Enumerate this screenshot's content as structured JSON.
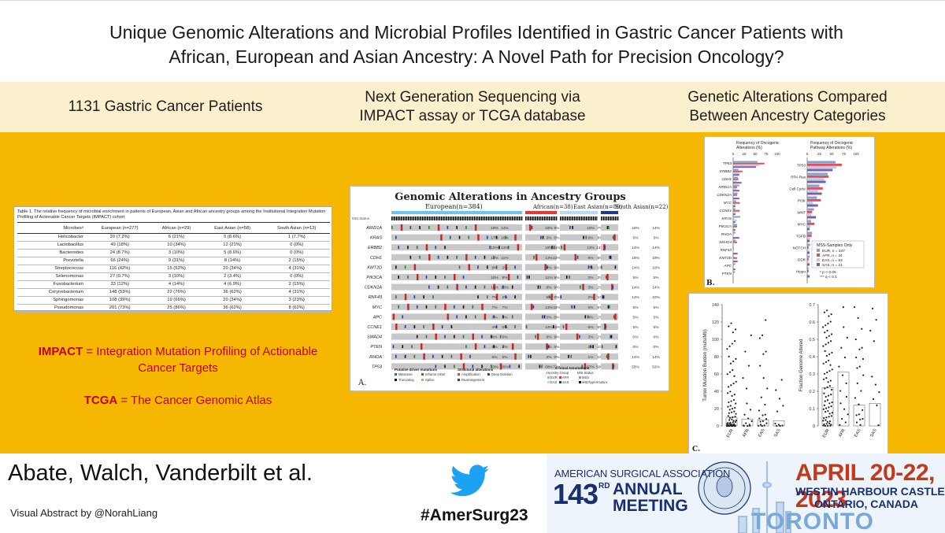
{
  "title": {
    "line1": "Unique Genomic Alterations and Microbial Profiles Identified in Gastric Cancer Patients with",
    "line2": "African, European and Asian Ancestry: A Novel Path for Precision Oncology?"
  },
  "header_strip": {
    "col1": "1131 Gastric Cancer Patients",
    "col2_line1": "Next Generation Sequencing via",
    "col2_line2": "IMPACT assay or TCGA database",
    "col3_line1": "Genetic Alterations Compared",
    "col3_line2": "Between Ancestry Categories"
  },
  "microbe_table": {
    "caption": "Table 1. The relative frequency of microbial enrichment in patients of European, Asian and African ancestry groups among the Institutional Integration Mutation Profiling of Actionable Cancer Targets (IMPACT) cohort",
    "headers": [
      "Microbesᵃ",
      "European (n=277)",
      "African (n=29)",
      "East Asian (n=58)",
      "South Asian (n=13)"
    ],
    "rows": [
      [
        "Helicobacter",
        "20 (7.2%)",
        "6 (21%)",
        "5 (8.6%)",
        "1 (7.7%)"
      ],
      [
        "Lactobacillus",
        "49 (18%)",
        "10 (34%)",
        "12 (21%)",
        "0 (0%)"
      ],
      [
        "Bacteroides",
        "24 (8.7%)",
        "3 (10%)",
        "5 (8.6%)",
        "0 (0%)"
      ],
      [
        "Prevotella",
        "66 (24%)",
        "9 (31%)",
        "8 (14%)",
        "2 (15%)"
      ],
      [
        "Streptococcus",
        "116 (42%)",
        "15 (52%)",
        "20 (34%)",
        "4 (31%)"
      ],
      [
        "Selenomonas",
        "27 (9.7%)",
        "3 (10%)",
        "2 (3.4%)",
        "0 (0%)"
      ],
      [
        "Fusobacterium",
        "33 (12%)",
        "4 (14%)",
        "4 (6.9%)",
        "2 (15%)"
      ],
      [
        "Corynebacterium",
        "148 (53%)",
        "22 (76%)",
        "36 (62%)",
        "4 (31%)"
      ],
      [
        "Sphingomonas",
        "108 (39%)",
        "19 (66%)",
        "20 (34%)",
        "3 (23%)"
      ],
      [
        "Pseudomonas",
        "201 (73%)",
        "25 (86%)",
        "36 (62%)",
        "8 (62%)"
      ]
    ]
  },
  "definitions": {
    "impact_abbr": "IMPACT",
    "impact_text": " = Integration Mutation Profiling of Actionable Cancer Targets",
    "tcga_abbr": "TCGA",
    "tcga_text": " = The Cancer Genomic Atlas"
  },
  "oncoprint": {
    "title": "Genomic Alterations in Ancestry Groups",
    "panel_label": "A.",
    "groups": [
      {
        "name": "European",
        "n": "(n=384)"
      },
      {
        "name": "African",
        "n": "(n=38)"
      },
      {
        "name": "East Asian",
        "n": "(n=89)"
      },
      {
        "name": "South Asian",
        "n": "(n=22)"
      }
    ],
    "subheaders": [
      "All",
      "MSS"
    ],
    "status_label": "MSI Status",
    "genes": [
      "ARID1A",
      "KRAS",
      "ERBB2",
      "CDH1",
      "KMT2D",
      "PIK3CA",
      "CDKN2A",
      "RNF43",
      "MYC",
      "APC",
      "CCNE1",
      "SMAD4",
      "PTEN",
      "RHOA",
      "TP53"
    ],
    "eur_pct": [
      [
        "19%",
        "14%"
      ],
      [
        "17%",
        "16%"
      ],
      [
        "12%",
        "12%"
      ],
      [
        "11%",
        "11%"
      ],
      [
        "9%",
        "2%"
      ],
      [
        "10%",
        "9%"
      ],
      [
        "10%",
        "10%"
      ],
      [
        "7%",
        "2%"
      ],
      [
        "7%",
        "7%"
      ],
      [
        "7%",
        "5%"
      ],
      [
        "4%",
        "5%"
      ],
      [
        "6%",
        "6%"
      ],
      [
        "6%",
        "4%"
      ],
      [
        "6%",
        "5%"
      ],
      [
        "53%",
        "55%"
      ]
    ],
    "afr_pct": [
      [
        "18%",
        "9%"
      ],
      [
        "3%",
        "0%"
      ],
      [
        "18%",
        "21%"
      ],
      [
        "13%",
        "12%"
      ],
      [
        "8%",
        "9%"
      ],
      [
        "11%",
        "9%"
      ],
      [
        "8%",
        "9%"
      ],
      [
        "5%",
        "0%"
      ],
      [
        "13%",
        "15%"
      ],
      [
        "5%",
        "0%"
      ],
      [
        "13%",
        "15%"
      ],
      [
        "8%",
        "9%"
      ],
      [
        "3%",
        "0%"
      ],
      [
        "3%",
        "0%"
      ],
      [
        "68%",
        "71%"
      ]
    ],
    "eas_pct": [
      [
        "10%",
        "7%"
      ],
      [
        "9%",
        "8%"
      ],
      [
        "13%",
        "14%"
      ],
      [
        "8%",
        "8%"
      ],
      [
        "7%",
        "1%"
      ],
      [
        "2%",
        "3%"
      ],
      [
        "3%",
        "2%"
      ],
      [
        "2%",
        "1%"
      ],
      [
        "6%",
        "6%"
      ],
      [
        "4%",
        "2%"
      ],
      [
        "6%",
        "6%"
      ],
      [
        "3%",
        "2%"
      ],
      [
        "2%",
        "1%"
      ],
      [
        "1%",
        "1%"
      ],
      [
        "57%",
        "59%"
      ]
    ],
    "sas_pct": [
      [
        "18%",
        "14%"
      ],
      [
        "5%",
        "5%"
      ],
      [
        "14%",
        "14%"
      ],
      [
        "18%",
        "19%"
      ],
      [
        "14%",
        "10%"
      ],
      [
        "5%",
        "5%"
      ],
      [
        "14%",
        "14%"
      ],
      [
        "14%",
        "10%"
      ],
      [
        "5%",
        "5%"
      ],
      [
        "5%",
        "5%"
      ],
      [
        "5%",
        "5%"
      ],
      [
        "0%",
        "0%"
      ],
      [
        "0%",
        "0%"
      ],
      [
        "14%",
        "14%"
      ],
      [
        "55%",
        "52%"
      ]
    ],
    "legend": {
      "putative_title": "Putative driver mutations",
      "putative_items": [
        "Missense",
        "Inframe InDel",
        "Truncating",
        "Splice"
      ],
      "structural_title": "Structural alterations",
      "structural_items": [
        "Amplification",
        "Deep Deletion",
        "Rearrangement"
      ],
      "clinical_title": "Clinical Annotations",
      "ancestry_label": "Ancestry Group",
      "ancestry_items": [
        "EUR",
        "AFR",
        "EAS",
        "SAS"
      ],
      "msi_label": "MSI Status",
      "msi_items": [
        "MSS",
        "MSI/hypermutant"
      ]
    }
  },
  "bar_chart": {
    "panel_label": "B.",
    "left_title_line1": "Frequency of Oncogenic",
    "left_title_line2": "Alterations (%)",
    "right_title_line1": "Frequency of Oncogenic",
    "right_title_line2": "Pathway Alterations (%)",
    "left_ticks": [
      "0",
      "25",
      "50",
      "75",
      "100"
    ],
    "right_ticks": [
      "0",
      "25",
      "50",
      "75",
      "100"
    ],
    "legend_title": "MSS-Samples Only",
    "legend_items": [
      "EUR, n = 347",
      "AFR, n = 34",
      "EAS, n = 83",
      "SAS, n = 21"
    ],
    "note1": "* p < 0.05",
    "note2": "*** q < 0.1"
  },
  "scatter_chart": {
    "panel_label": "C.",
    "left_ylabel": "Tumor Mutation Burden (muts/Mb)",
    "right_ylabel": "Fraction Genome Altered",
    "left_yticks": [
      "0",
      "20",
      "40",
      "60",
      "80",
      "100",
      "120",
      "140"
    ],
    "right_yticks": [
      "0",
      "0.1",
      "0.2",
      "0.3",
      "0.4",
      "0.5",
      "0.6",
      "0.7"
    ],
    "categories": [
      "EUR",
      "AFR",
      "EAS",
      "SAS"
    ]
  },
  "chart_data": [
    {
      "type": "bar",
      "title": "Frequency of Oncogenic Alterations (%)",
      "categories": [
        "TP53",
        "ERBB2",
        "CDH1",
        "ARID1A",
        "CDKN2A",
        "MYC",
        "CCNE1",
        "KRAS",
        "PIK3CA",
        "RHOA",
        "SMAD4",
        "RNF43",
        "KMT2D",
        "APC",
        "PTEN"
      ],
      "series": [
        {
          "name": "EUR, n = 347",
          "values": [
            55,
            12,
            11,
            14,
            10,
            7,
            5,
            16,
            9,
            5,
            6,
            2,
            2,
            5,
            4
          ]
        },
        {
          "name": "AFR, n = 34",
          "values": [
            71,
            21,
            12,
            9,
            9,
            15,
            15,
            0,
            9,
            0,
            9,
            0,
            9,
            0,
            0
          ]
        },
        {
          "name": "EAS, n = 83",
          "values": [
            59,
            14,
            8,
            7,
            2,
            6,
            6,
            8,
            3,
            1,
            2,
            1,
            1,
            2,
            1
          ]
        },
        {
          "name": "SAS, n = 21",
          "values": [
            52,
            14,
            19,
            14,
            14,
            5,
            5,
            5,
            5,
            14,
            0,
            10,
            10,
            5,
            0
          ]
        }
      ],
      "ylim": [
        0,
        100
      ],
      "legend_position": "bottom-right"
    },
    {
      "type": "bar",
      "title": "Frequency of Oncogenic Pathway Alterations (%)",
      "categories": [
        "TP53",
        "RTK-Ras",
        "Cell Cycle",
        "PI3K",
        "WNT",
        "MYC",
        "TGFB",
        "NOTCH",
        "DDR",
        "Hippo"
      ],
      "series": [
        {
          "name": "EUR, n = 347",
          "values": [
            58,
            42,
            25,
            20,
            14,
            8,
            10,
            6,
            5,
            3
          ]
        },
        {
          "name": "AFR, n = 34",
          "values": [
            71,
            44,
            32,
            28,
            10,
            15,
            9,
            3,
            3,
            3
          ]
        },
        {
          "name": "EAS, n = 83",
          "values": [
            60,
            35,
            22,
            12,
            8,
            7,
            6,
            4,
            3,
            2
          ]
        },
        {
          "name": "SAS, n = 21",
          "values": [
            52,
            38,
            30,
            22,
            18,
            5,
            5,
            5,
            5,
            5
          ]
        }
      ],
      "ylim": [
        0,
        100
      ]
    },
    {
      "type": "scatter",
      "ylabel": "Tumor Mutation Burden (muts/Mb)",
      "categories": [
        "EUR",
        "AFR",
        "EAS",
        "SAS"
      ],
      "bar_values": [
        10,
        8,
        7,
        6
      ],
      "ylim": [
        0,
        140
      ]
    },
    {
      "type": "scatter",
      "ylabel": "Fraction Genome Altered",
      "categories": [
        "EUR",
        "AFR",
        "EAS",
        "SAS"
      ],
      "bar_values": [
        0.22,
        0.31,
        0.12,
        0.13
      ],
      "ylim": [
        0,
        0.7
      ]
    }
  ],
  "footer": {
    "authors": "Abate, Walch, Vanderbilt et al.",
    "credit": "Visual Abstract by @NorahLiang",
    "hashtag": "#AmerSurg23",
    "asa_name": "AMERICAN SURGICAL ASSOCIATION",
    "asa_number": "143",
    "asa_rd": "RD",
    "asa_annual": "ANNUAL",
    "asa_meeting": "MEETING",
    "asa_date": "APRIL 20-22, 2023",
    "asa_venue": "WESTIN HARBOUR CASTLE",
    "asa_region": "ONTARIO, CANADA",
    "asa_city": "TORONTO",
    "colors": {
      "accent_orange": "#f5b700",
      "strip": "#fbf0cd",
      "definition_red": "#c0001a",
      "twitter_blue": "#1da1f2",
      "asa_navy": "#1a2f6e",
      "asa_red": "#c23a1c"
    }
  }
}
